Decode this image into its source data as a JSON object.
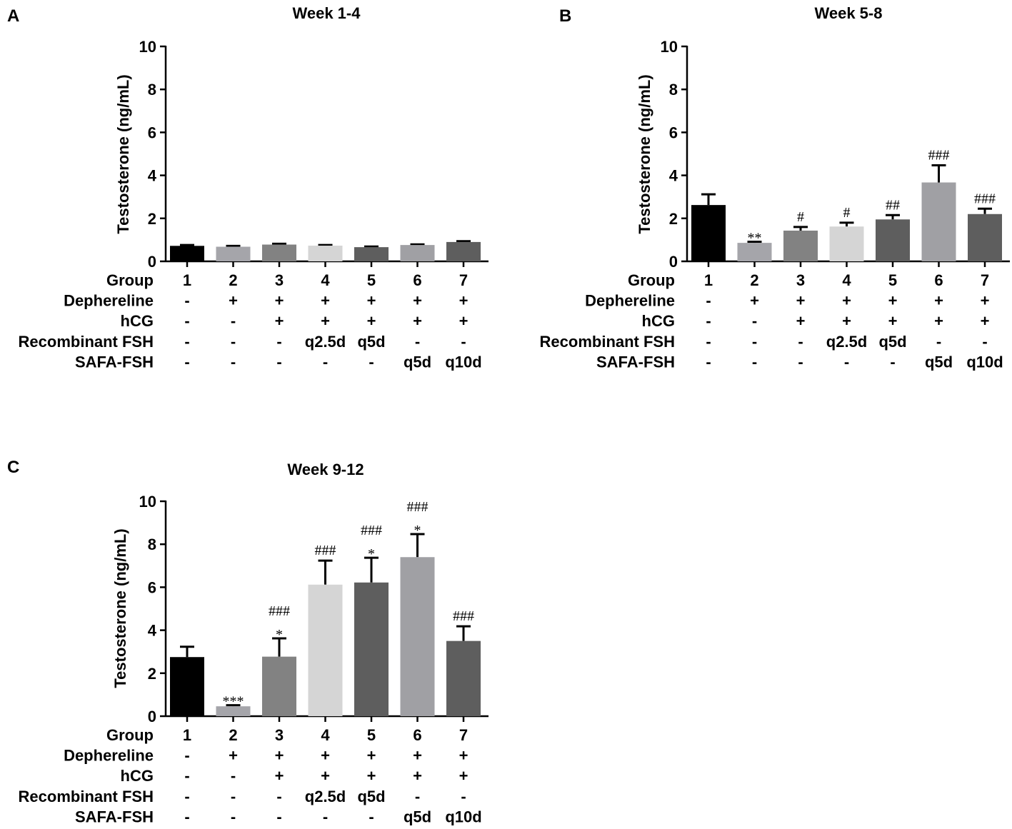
{
  "figure": {
    "row_labels": [
      "Group",
      "Dephereline",
      "hCG",
      "Recombinant FSH",
      "SAFA-FSH"
    ],
    "treatment_rows": [
      [
        "1",
        "2",
        "3",
        "4",
        "5",
        "6",
        "7"
      ],
      [
        "-",
        "+",
        "+",
        "+",
        "+",
        "+",
        "+"
      ],
      [
        "-",
        "-",
        "+",
        "+",
        "+",
        "+",
        "+"
      ],
      [
        "-",
        "-",
        "-",
        "q2.5d",
        "q5d",
        "-",
        "-"
      ],
      [
        "-",
        "-",
        "-",
        "-",
        "-",
        "q5d",
        "q10d"
      ]
    ],
    "bar_colors": [
      "#000000",
      "#a5a5aa",
      "#828282",
      "#d5d5d5",
      "#5e5e5e",
      "#a0a0a4",
      "#5e5e5e"
    ]
  },
  "chart_data": [
    {
      "panel": "A",
      "type": "bar",
      "title": "Week 1-4",
      "ylabel": "Testosterone (ng/mL)",
      "xlabel": "Group",
      "categories": [
        "1",
        "2",
        "3",
        "4",
        "5",
        "6",
        "7"
      ],
      "values": [
        0.72,
        0.68,
        0.78,
        0.73,
        0.66,
        0.76,
        0.9
      ],
      "errors": [
        0.04,
        0.04,
        0.04,
        0.03,
        0.03,
        0.03,
        0.04
      ],
      "annotations": [
        [],
        [],
        [],
        [],
        [],
        [],
        []
      ],
      "ylim": [
        0,
        10
      ],
      "yticks": [
        "0",
        "2",
        "4",
        "6",
        "8",
        "10"
      ]
    },
    {
      "panel": "B",
      "type": "bar",
      "title": "Week 5-8",
      "ylabel": "Testosterone (ng/mL)",
      "xlabel": "Group",
      "categories": [
        "1",
        "2",
        "3",
        "4",
        "5",
        "6",
        "7"
      ],
      "values": [
        2.62,
        0.86,
        1.43,
        1.62,
        1.95,
        3.67,
        2.2
      ],
      "errors": [
        0.5,
        0.05,
        0.17,
        0.18,
        0.2,
        0.8,
        0.25
      ],
      "annotations": [
        [],
        [
          "**"
        ],
        [
          "#"
        ],
        [
          "#"
        ],
        [
          "##"
        ],
        [
          "###"
        ],
        [
          "###"
        ]
      ],
      "ylim": [
        0,
        10
      ],
      "yticks": [
        "0",
        "2",
        "4",
        "6",
        "8",
        "10"
      ]
    },
    {
      "panel": "C",
      "type": "bar",
      "title": "Week 9-12",
      "ylabel": "Testosterone (ng/mL)",
      "xlabel": "Group",
      "categories": [
        "1",
        "2",
        "3",
        "4",
        "5",
        "6",
        "7"
      ],
      "values": [
        2.75,
        0.46,
        2.77,
        6.12,
        6.22,
        7.4,
        3.5
      ],
      "errors": [
        0.48,
        0.05,
        0.85,
        1.12,
        1.15,
        1.07,
        0.68
      ],
      "annotations": [
        [],
        [
          "***"
        ],
        [
          "###",
          "*"
        ],
        [
          "###"
        ],
        [
          "###",
          "*"
        ],
        [
          "###",
          "*"
        ],
        [
          "###"
        ]
      ],
      "ylim": [
        0,
        10
      ],
      "yticks": [
        "0",
        "2",
        "4",
        "6",
        "8",
        "10"
      ]
    }
  ]
}
